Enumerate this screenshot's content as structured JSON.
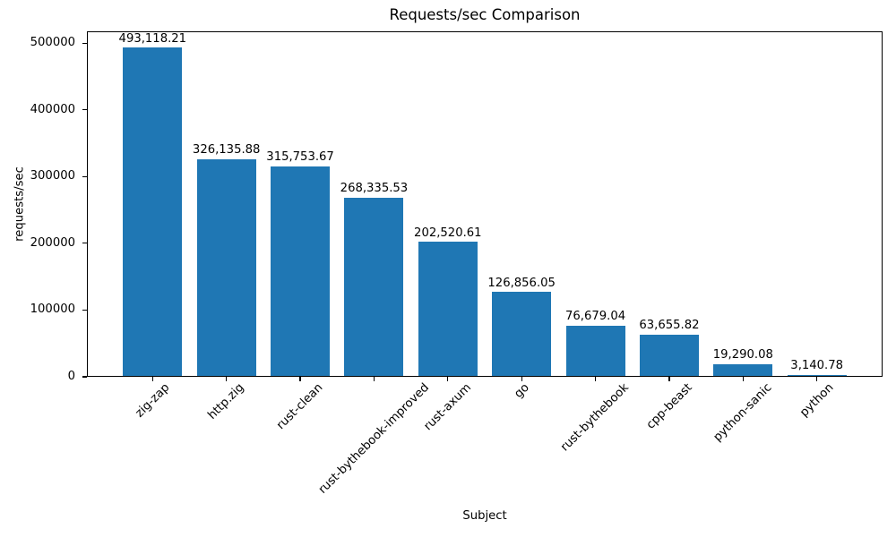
{
  "chart_data": {
    "type": "bar",
    "title": "Requests/sec Comparison",
    "xlabel": "Subject",
    "ylabel": "requests/sec",
    "categories": [
      "zig-zap",
      "http.zig",
      "rust-clean",
      "rust-bythebook-improved",
      "rust-axum",
      "go",
      "rust-bythebook",
      "cpp-beast",
      "python-sanic",
      "python"
    ],
    "values": [
      493118.21,
      326135.88,
      315753.67,
      268335.53,
      202520.61,
      126856.05,
      76679.04,
      63655.82,
      19290.08,
      3140.78
    ],
    "value_labels": [
      "493,118.21",
      "326,135.88",
      "315,753.67",
      "268,335.53",
      "202,520.61",
      "126,856.05",
      "76,679.04",
      "63,655.82",
      "19,290.08",
      "3,140.78"
    ],
    "ytick_values": [
      0,
      100000,
      200000,
      300000,
      400000,
      500000
    ],
    "ytick_labels": [
      "0",
      "100000",
      "200000",
      "300000",
      "400000",
      "500000"
    ],
    "ylim": [
      0,
      517800
    ],
    "xtick_rotation_deg": 45,
    "bar_color": "#1f77b4",
    "spine_color": "#000000",
    "text_color": "#000000",
    "background_color": "#ffffff",
    "grid": false,
    "legend": null
  }
}
